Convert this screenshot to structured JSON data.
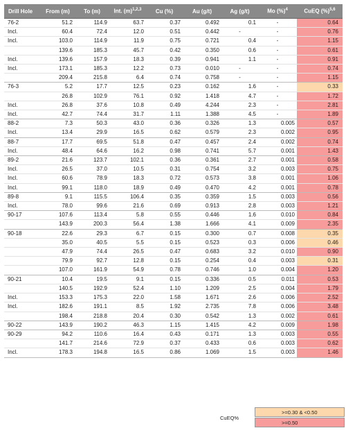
{
  "headers": [
    "Drill Hole",
    "From (m)",
    "To (m)",
    "Int. (m)1,2,3",
    "Cu (%)",
    "Au (g/t)",
    "Ag (g/t)",
    "Mo (%)4",
    "CuEQ (%)5,6"
  ],
  "groups": [
    {
      "rows": [
        {
          "hole": "76-2",
          "from": "51.2",
          "to": "114.9",
          "int": "63.7",
          "cu": "0.37",
          "au": "0.492",
          "ag": "0.1",
          "mo": "-",
          "cueq": "0.64",
          "level": "high"
        },
        {
          "hole": "Incl.",
          "from": "60.4",
          "to": "72.4",
          "int": "12.0",
          "cu": "0.51",
          "au": "0.442",
          "ag": "-",
          "mo": "-",
          "cueq": "0.76",
          "level": "high"
        },
        {
          "hole": "Incl.",
          "from": "103.0",
          "to": "114.9",
          "int": "11.9",
          "cu": "0.75",
          "au": "0.721",
          "ag": "0.4",
          "mo": "-",
          "cueq": "1.15",
          "level": "high"
        },
        {
          "hole": "",
          "from": "139.6",
          "to": "185.3",
          "int": "45.7",
          "cu": "0.42",
          "au": "0.350",
          "ag": "0.6",
          "mo": "-",
          "cueq": "0.61",
          "level": "high"
        },
        {
          "hole": "Incl.",
          "from": "139.6",
          "to": "157.9",
          "int": "18.3",
          "cu": "0.39",
          "au": "0.941",
          "ag": "1.1",
          "mo": "-",
          "cueq": "0.91",
          "level": "high"
        },
        {
          "hole": "Incl.",
          "from": "173.1",
          "to": "185.3",
          "int": "12.2",
          "cu": "0.73",
          "au": "0.010",
          "ag": "-",
          "mo": "-",
          "cueq": "0.74",
          "level": "high"
        },
        {
          "hole": "",
          "from": "209.4",
          "to": "215.8",
          "int": "6.4",
          "cu": "0.74",
          "au": "0.758",
          "ag": "-",
          "mo": "-",
          "cueq": "1.15",
          "level": "high"
        }
      ]
    },
    {
      "rows": [
        {
          "hole": "76-3",
          "from": "5.2",
          "to": "17.7",
          "int": "12.5",
          "cu": "0.23",
          "au": "0.162",
          "ag": "1.6",
          "mo": "-",
          "cueq": "0.33",
          "level": "mid"
        },
        {
          "hole": "",
          "from": "26.8",
          "to": "102.9",
          "int": "76.1",
          "cu": "0.92",
          "au": "1.418",
          "ag": "4.7",
          "mo": "-",
          "cueq": "1.72",
          "level": "high"
        },
        {
          "hole": "Incl.",
          "from": "26.8",
          "to": "37.6",
          "int": "10.8",
          "cu": "0.49",
          "au": "4.244",
          "ag": "2.3",
          "mo": "-",
          "cueq": "2.81",
          "level": "high"
        },
        {
          "hole": "Incl.",
          "from": "42.7",
          "to": "74.4",
          "int": "31.7",
          "cu": "1.11",
          "au": "1.388",
          "ag": "4.5",
          "mo": "-",
          "cueq": "1.89",
          "level": "high"
        }
      ]
    },
    {
      "rows": [
        {
          "hole": "88-2",
          "from": "7.3",
          "to": "50.3",
          "int": "43.0",
          "cu": "0.36",
          "au": "0.326",
          "ag": "1.3",
          "mo": "0.005",
          "cueq": "0.57",
          "level": "high"
        },
        {
          "hole": "Incl.",
          "from": "13.4",
          "to": "29.9",
          "int": "16.5",
          "cu": "0.62",
          "au": "0.579",
          "ag": "2.3",
          "mo": "0.002",
          "cueq": "0.95",
          "level": "high"
        }
      ]
    },
    {
      "rows": [
        {
          "hole": "88-7",
          "from": "17.7",
          "to": "69.5",
          "int": "51.8",
          "cu": "0.47",
          "au": "0.457",
          "ag": "2.4",
          "mo": "0.002",
          "cueq": "0.74",
          "level": "high"
        },
        {
          "hole": "Incl.",
          "from": "48.4",
          "to": "64.6",
          "int": "16.2",
          "cu": "0.98",
          "au": "0.741",
          "ag": "5.7",
          "mo": "0.001",
          "cueq": "1.43",
          "level": "high"
        }
      ]
    },
    {
      "rows": [
        {
          "hole": "89-2",
          "from": "21.6",
          "to": "123.7",
          "int": "102.1",
          "cu": "0.36",
          "au": "0.361",
          "ag": "2.7",
          "mo": "0.001",
          "cueq": "0.58",
          "level": "high"
        },
        {
          "hole": "Incl.",
          "from": "26.5",
          "to": "37.0",
          "int": "10.5",
          "cu": "0.31",
          "au": "0.754",
          "ag": "3.2",
          "mo": "0.003",
          "cueq": "0.75",
          "level": "high"
        },
        {
          "hole": "Incl.",
          "from": "60.6",
          "to": "78.9",
          "int": "18.3",
          "cu": "0.72",
          "au": "0.573",
          "ag": "3.8",
          "mo": "0.001",
          "cueq": "1.06",
          "level": "high"
        },
        {
          "hole": "Incl.",
          "from": "99.1",
          "to": "118.0",
          "int": "18.9",
          "cu": "0.49",
          "au": "0.470",
          "ag": "4.2",
          "mo": "0.001",
          "cueq": "0.78",
          "level": "high"
        }
      ]
    },
    {
      "rows": [
        {
          "hole": "89-8",
          "from": "9.1",
          "to": "115.5",
          "int": "106.4",
          "cu": "0.35",
          "au": "0.359",
          "ag": "1.5",
          "mo": "0.003",
          "cueq": "0.56",
          "level": "high"
        },
        {
          "hole": "Incl.",
          "from": "78.0",
          "to": "99.6",
          "int": "21.6",
          "cu": "0.69",
          "au": "0.913",
          "ag": "2.8",
          "mo": "0.003",
          "cueq": "1.21",
          "level": "high"
        }
      ]
    },
    {
      "rows": [
        {
          "hole": "90-17",
          "from": "107.6",
          "to": "113.4",
          "int": "5.8",
          "cu": "0.55",
          "au": "0.446",
          "ag": "1.6",
          "mo": "0.010",
          "cueq": "0.84",
          "level": "high"
        },
        {
          "hole": "",
          "from": "143.9",
          "to": "200.3",
          "int": "56.4",
          "cu": "1.38",
          "au": "1.666",
          "ag": "4.1",
          "mo": "0.009",
          "cueq": "2.35",
          "level": "high"
        }
      ]
    },
    {
      "rows": [
        {
          "hole": "90-18",
          "from": "22.6",
          "to": "29.3",
          "int": "6.7",
          "cu": "0.15",
          "au": "0.300",
          "ag": "0.7",
          "mo": "0.008",
          "cueq": "0.35",
          "level": "mid"
        },
        {
          "hole": "",
          "from": "35.0",
          "to": "40.5",
          "int": "5.5",
          "cu": "0.15",
          "au": "0.523",
          "ag": "0.3",
          "mo": "0.006",
          "cueq": "0.46",
          "level": "mid"
        },
        {
          "hole": "",
          "from": "47.9",
          "to": "74.4",
          "int": "26.5",
          "cu": "0.47",
          "au": "0.683",
          "ag": "3.2",
          "mo": "0.010",
          "cueq": "0.90",
          "level": "high"
        },
        {
          "hole": "",
          "from": "79.9",
          "to": "92.7",
          "int": "12.8",
          "cu": "0.15",
          "au": "0.254",
          "ag": "0.4",
          "mo": "0.003",
          "cueq": "0.31",
          "level": "mid"
        },
        {
          "hole": "",
          "from": "107.0",
          "to": "161.9",
          "int": "54.9",
          "cu": "0.78",
          "au": "0.746",
          "ag": "1.0",
          "mo": "0.004",
          "cueq": "1.20",
          "level": "high"
        }
      ]
    },
    {
      "rows": [
        {
          "hole": "90-21",
          "from": "10.4",
          "to": "19.5",
          "int": "9.1",
          "cu": "0.15",
          "au": "0.336",
          "ag": "0.5",
          "mo": "0.011",
          "cueq": "0.53",
          "level": "high"
        },
        {
          "hole": "",
          "from": "140.5",
          "to": "192.9",
          "int": "52.4",
          "cu": "1.10",
          "au": "1.209",
          "ag": "2.5",
          "mo": "0.004",
          "cueq": "1.79",
          "level": "high"
        },
        {
          "hole": "Incl.",
          "from": "153.3",
          "to": "175.3",
          "int": "22.0",
          "cu": "1.58",
          "au": "1.671",
          "ag": "2.6",
          "mo": "0.006",
          "cueq": "2.52",
          "level": "high"
        },
        {
          "hole": "Incl.",
          "from": "182.6",
          "to": "191.1",
          "int": "8.5",
          "cu": "1.92",
          "au": "2.735",
          "ag": "7.8",
          "mo": "0.006",
          "cueq": "3.48",
          "level": "high"
        },
        {
          "hole": "",
          "from": "198.4",
          "to": "218.8",
          "int": "20.4",
          "cu": "0.30",
          "au": "0.542",
          "ag": "1.3",
          "mo": "0.002",
          "cueq": "0.61",
          "level": "high"
        }
      ]
    },
    {
      "rows": [
        {
          "hole": "90-22",
          "from": "143.9",
          "to": "190.2",
          "int": "46.3",
          "cu": "1.15",
          "au": "1.415",
          "ag": "4.2",
          "mo": "0.009",
          "cueq": "1.98",
          "level": "high"
        }
      ]
    },
    {
      "rows": [
        {
          "hole": "90-29",
          "from": "94.2",
          "to": "110.6",
          "int": "16.4",
          "cu": "0.43",
          "au": "0.171",
          "ag": "1.3",
          "mo": "0.003",
          "cueq": "0.55",
          "level": "high"
        },
        {
          "hole": "",
          "from": "141.7",
          "to": "214.6",
          "int": "72.9",
          "cu": "0.37",
          "au": "0.433",
          "ag": "0.6",
          "mo": "0.003",
          "cueq": "0.62",
          "level": "high"
        },
        {
          "hole": "Incl.",
          "from": "178.3",
          "to": "194.8",
          "int": "16.5",
          "cu": "0.86",
          "au": "1.069",
          "ag": "1.5",
          "mo": "0.003",
          "cueq": "1.46",
          "level": "high"
        }
      ]
    }
  ],
  "legend": {
    "title": "CuEQ%",
    "mid_label": ">=0.30 & <0.50",
    "high_label": ">=0.50",
    "mid_color": "#fcd8ac",
    "high_color": "#f79b9b"
  }
}
